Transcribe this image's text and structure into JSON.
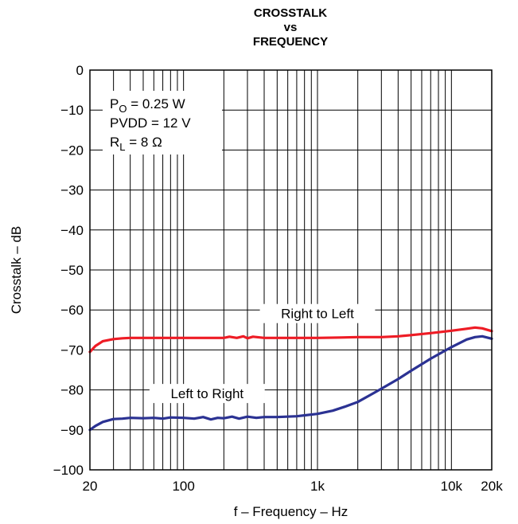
{
  "chart_data": {
    "type": "line",
    "title": [
      "CROSSTALK",
      "vs",
      "FREQUENCY"
    ],
    "xlabel": "f – Frequency – Hz",
    "ylabel": "Crosstalk – dB",
    "xscale": "log",
    "xlim": [
      20,
      20000
    ],
    "ylim": [
      -100,
      0
    ],
    "grid": true,
    "x_ticks": [
      {
        "value": 20,
        "label": "20"
      },
      {
        "value": 100,
        "label": "100"
      },
      {
        "value": 1000,
        "label": "1k"
      },
      {
        "value": 10000,
        "label": "10k"
      },
      {
        "value": 20000,
        "label": "20k"
      }
    ],
    "y_ticks": [
      {
        "value": 0,
        "label": "0"
      },
      {
        "value": -10,
        "label": "−10"
      },
      {
        "value": -20,
        "label": "−20"
      },
      {
        "value": -30,
        "label": "−30"
      },
      {
        "value": -40,
        "label": "−40"
      },
      {
        "value": -50,
        "label": "−50"
      },
      {
        "value": -60,
        "label": "−60"
      },
      {
        "value": -70,
        "label": "−70"
      },
      {
        "value": -80,
        "label": "−80"
      },
      {
        "value": -90,
        "label": "−90"
      },
      {
        "value": -100,
        "label": "−100"
      }
    ],
    "conditions": [
      {
        "main": "P",
        "sub": "O",
        "rest": " = 0.25 W"
      },
      {
        "main": "PVDD = 12 V",
        "sub": "",
        "rest": ""
      },
      {
        "main": "R",
        "sub": "L",
        "rest": " = 8 Ω"
      }
    ],
    "series": [
      {
        "name": "Right to Left",
        "color": "#ee1c25",
        "x": [
          20,
          22,
          25,
          30,
          35,
          40,
          50,
          70,
          100,
          150,
          200,
          220,
          250,
          280,
          300,
          330,
          400,
          500,
          700,
          1000,
          1500,
          2000,
          3000,
          4000,
          5000,
          7000,
          10000,
          13000,
          15000,
          17000,
          20000
        ],
        "y": [
          -70.5,
          -69,
          -67.8,
          -67.3,
          -67.1,
          -67,
          -67,
          -67,
          -67,
          -67,
          -67,
          -66.7,
          -67,
          -66.6,
          -67.1,
          -66.7,
          -67,
          -67,
          -67,
          -67,
          -66.9,
          -66.8,
          -66.8,
          -66.6,
          -66.3,
          -65.8,
          -65.2,
          -64.7,
          -64.4,
          -64.6,
          -65.3
        ]
      },
      {
        "name": "Left to Right",
        "color": "#2b3293",
        "x": [
          20,
          22,
          25,
          30,
          35,
          40,
          50,
          60,
          70,
          80,
          100,
          120,
          140,
          160,
          180,
          200,
          230,
          260,
          300,
          350,
          400,
          500,
          700,
          1000,
          1300,
          1600,
          2000,
          2500,
          3000,
          4000,
          5000,
          7000,
          10000,
          13000,
          15000,
          17000,
          20000
        ],
        "y": [
          -90,
          -89,
          -88,
          -87.3,
          -87.2,
          -87,
          -87.1,
          -87,
          -87.2,
          -86.9,
          -87,
          -87.2,
          -86.8,
          -87.4,
          -87,
          -87.1,
          -86.7,
          -87.2,
          -86.7,
          -87,
          -86.8,
          -86.8,
          -86.6,
          -86,
          -85.2,
          -84.2,
          -83,
          -81.2,
          -79.7,
          -77.3,
          -75.2,
          -72.2,
          -69.3,
          -67.4,
          -66.8,
          -66.6,
          -67.2
        ]
      }
    ],
    "annotations": [
      {
        "text": "Right to Left",
        "x": 1000,
        "y": -61.5
      },
      {
        "text": "Left to Right",
        "x": 150,
        "y": -81.5
      }
    ]
  }
}
